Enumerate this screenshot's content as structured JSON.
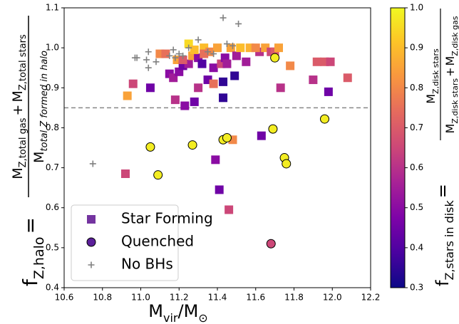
{
  "chart_data": {
    "type": "scatter",
    "xlabel": {
      "main": "M",
      "sub": "vir",
      "rest": "/M",
      "sun": "⊙"
    },
    "ylabel": {
      "f": "f",
      "f_sub": "Z,halo",
      "eq": "=",
      "num1": "M",
      "num1_sub": "Z,total gas",
      "plus": "+",
      "num2": "M",
      "num2_sub": "Z,total stars",
      "den": "M",
      "den_sub": "total Z formed in halo"
    },
    "xlim": [
      10.6,
      12.2
    ],
    "xticks": [
      10.6,
      10.8,
      {
        "value": 11,
        "label": "11.0"
      },
      11.2,
      11.4,
      11.6,
      11.8,
      {
        "value": 12,
        "label": "12.0"
      },
      12.2
    ],
    "ylim": [
      0.4,
      1.1
    ],
    "yticks": [
      0.4,
      0.5,
      0.6,
      0.7,
      0.8,
      0.9,
      {
        "value": 1,
        "label": "1.0"
      },
      1.1
    ],
    "hline": {
      "value": 0.85,
      "color": "#888888"
    },
    "legend": "lower left",
    "colorbar": {
      "colormap": "plasma",
      "lim": [
        0.3,
        1.0
      ],
      "ticks": [
        0.3,
        0.4,
        0.5,
        0.6,
        0.7,
        0.8,
        0.9,
        {
          "value": 1,
          "label": "1.0"
        }
      ],
      "label": {
        "f": "f",
        "f_sub": "Z,stars in disk",
        "eq": "=",
        "num": "M",
        "num_sub": "Z,disk stars",
        "den1": "M",
        "den1_sub": "Z,disk stars",
        "plus": "+",
        "den2": "M",
        "den2_sub": "Z,disk gas"
      }
    },
    "series": [
      {
        "name": "Star Forming",
        "marker": "square",
        "color": "#7434a0",
        "x": [
          10.92,
          10.93,
          10.96,
          11.05,
          11.1,
          11.15,
          11.17,
          11.18,
          11.19,
          11.2,
          11.22,
          11.23,
          11.25,
          11.25,
          11.27,
          11.28,
          11.3,
          11.3,
          11.32,
          11.33,
          11.35,
          11.36,
          11.38,
          11.38,
          11.39,
          11.41,
          11.42,
          11.43,
          11.43,
          11.44,
          11.45,
          11.46,
          11.47,
          11.48,
          11.49,
          11.5,
          11.52,
          11.55,
          11.57,
          11.62,
          11.63,
          11.65,
          11.68,
          11.7,
          11.72,
          11.73,
          11.78,
          11.9,
          11.92,
          11.96,
          11.98,
          11.99,
          12.08,
          11.28,
          11.4,
          11.6,
          11.33,
          11.22,
          11.13
        ],
        "values": [
          0.685,
          0.88,
          0.91,
          0.9,
          0.985,
          0.935,
          0.925,
          0.87,
          0.97,
          0.94,
          0.955,
          0.855,
          0.96,
          1.01,
          0.98,
          0.865,
          0.9,
          0.975,
          0.96,
          1.0,
          0.92,
          0.99,
          0.95,
          0.91,
          0.72,
          0.645,
          0.96,
          0.875,
          0.915,
          0.975,
          0.96,
          0.595,
          1.0,
          0.77,
          0.93,
          0.98,
          1.0,
          0.965,
          1.0,
          0.99,
          0.78,
          1.0,
          0.99,
          0.99,
          1.0,
          0.9,
          0.955,
          0.92,
          0.965,
          0.965,
          0.89,
          0.965,
          0.925,
          0.995,
          1.0,
          1.0,
          0.985,
          0.97,
          0.985
        ],
        "c": [
          0.65,
          0.85,
          0.65,
          0.45,
          0.8,
          0.5,
          0.55,
          0.6,
          0.85,
          0.5,
          0.45,
          0.5,
          0.55,
          0.95,
          0.85,
          0.45,
          0.6,
          0.5,
          0.4,
          0.9,
          0.45,
          0.8,
          0.5,
          0.75,
          0.5,
          0.45,
          0.65,
          0.35,
          0.35,
          0.5,
          0.55,
          0.65,
          0.85,
          0.8,
          0.35,
          0.55,
          0.9,
          0.55,
          0.88,
          0.6,
          0.45,
          0.85,
          0.65,
          0.7,
          0.85,
          0.6,
          0.8,
          0.6,
          0.7,
          0.7,
          0.45,
          0.65,
          0.7,
          0.9,
          0.85,
          0.8,
          0.75,
          0.7,
          0.75
        ]
      },
      {
        "name": "Quenched",
        "marker": "circle",
        "color": "#5b1f9a",
        "x": [
          11.05,
          11.09,
          11.27,
          11.43,
          11.45,
          11.69,
          11.7,
          11.75,
          11.76,
          11.96,
          11.68
        ],
        "values": [
          0.752,
          0.682,
          0.757,
          0.77,
          0.775,
          0.797,
          0.975,
          0.725,
          0.71,
          0.822,
          0.51
        ],
        "c": [
          0.98,
          0.98,
          0.98,
          0.98,
          0.98,
          0.98,
          0.98,
          0.98,
          0.98,
          0.98,
          0.65
        ]
      },
      {
        "name": "No BHs",
        "marker": "plus",
        "color": "#808080",
        "x": [
          10.75,
          10.97,
          10.98,
          11.03,
          11.04,
          11.04,
          11.08,
          11.15,
          11.17,
          11.2,
          11.22,
          11.25,
          11.3,
          11.35,
          11.38,
          11.43,
          11.45,
          11.48,
          11.51,
          11.18
        ],
        "values": [
          0.71,
          0.975,
          0.975,
          0.97,
          0.99,
          0.95,
          0.965,
          0.98,
          0.995,
          0.985,
          0.98,
          1.0,
          1.02,
          0.99,
          0.985,
          1.075,
          1.01,
          1.005,
          1.06,
          0.975
        ]
      }
    ]
  }
}
